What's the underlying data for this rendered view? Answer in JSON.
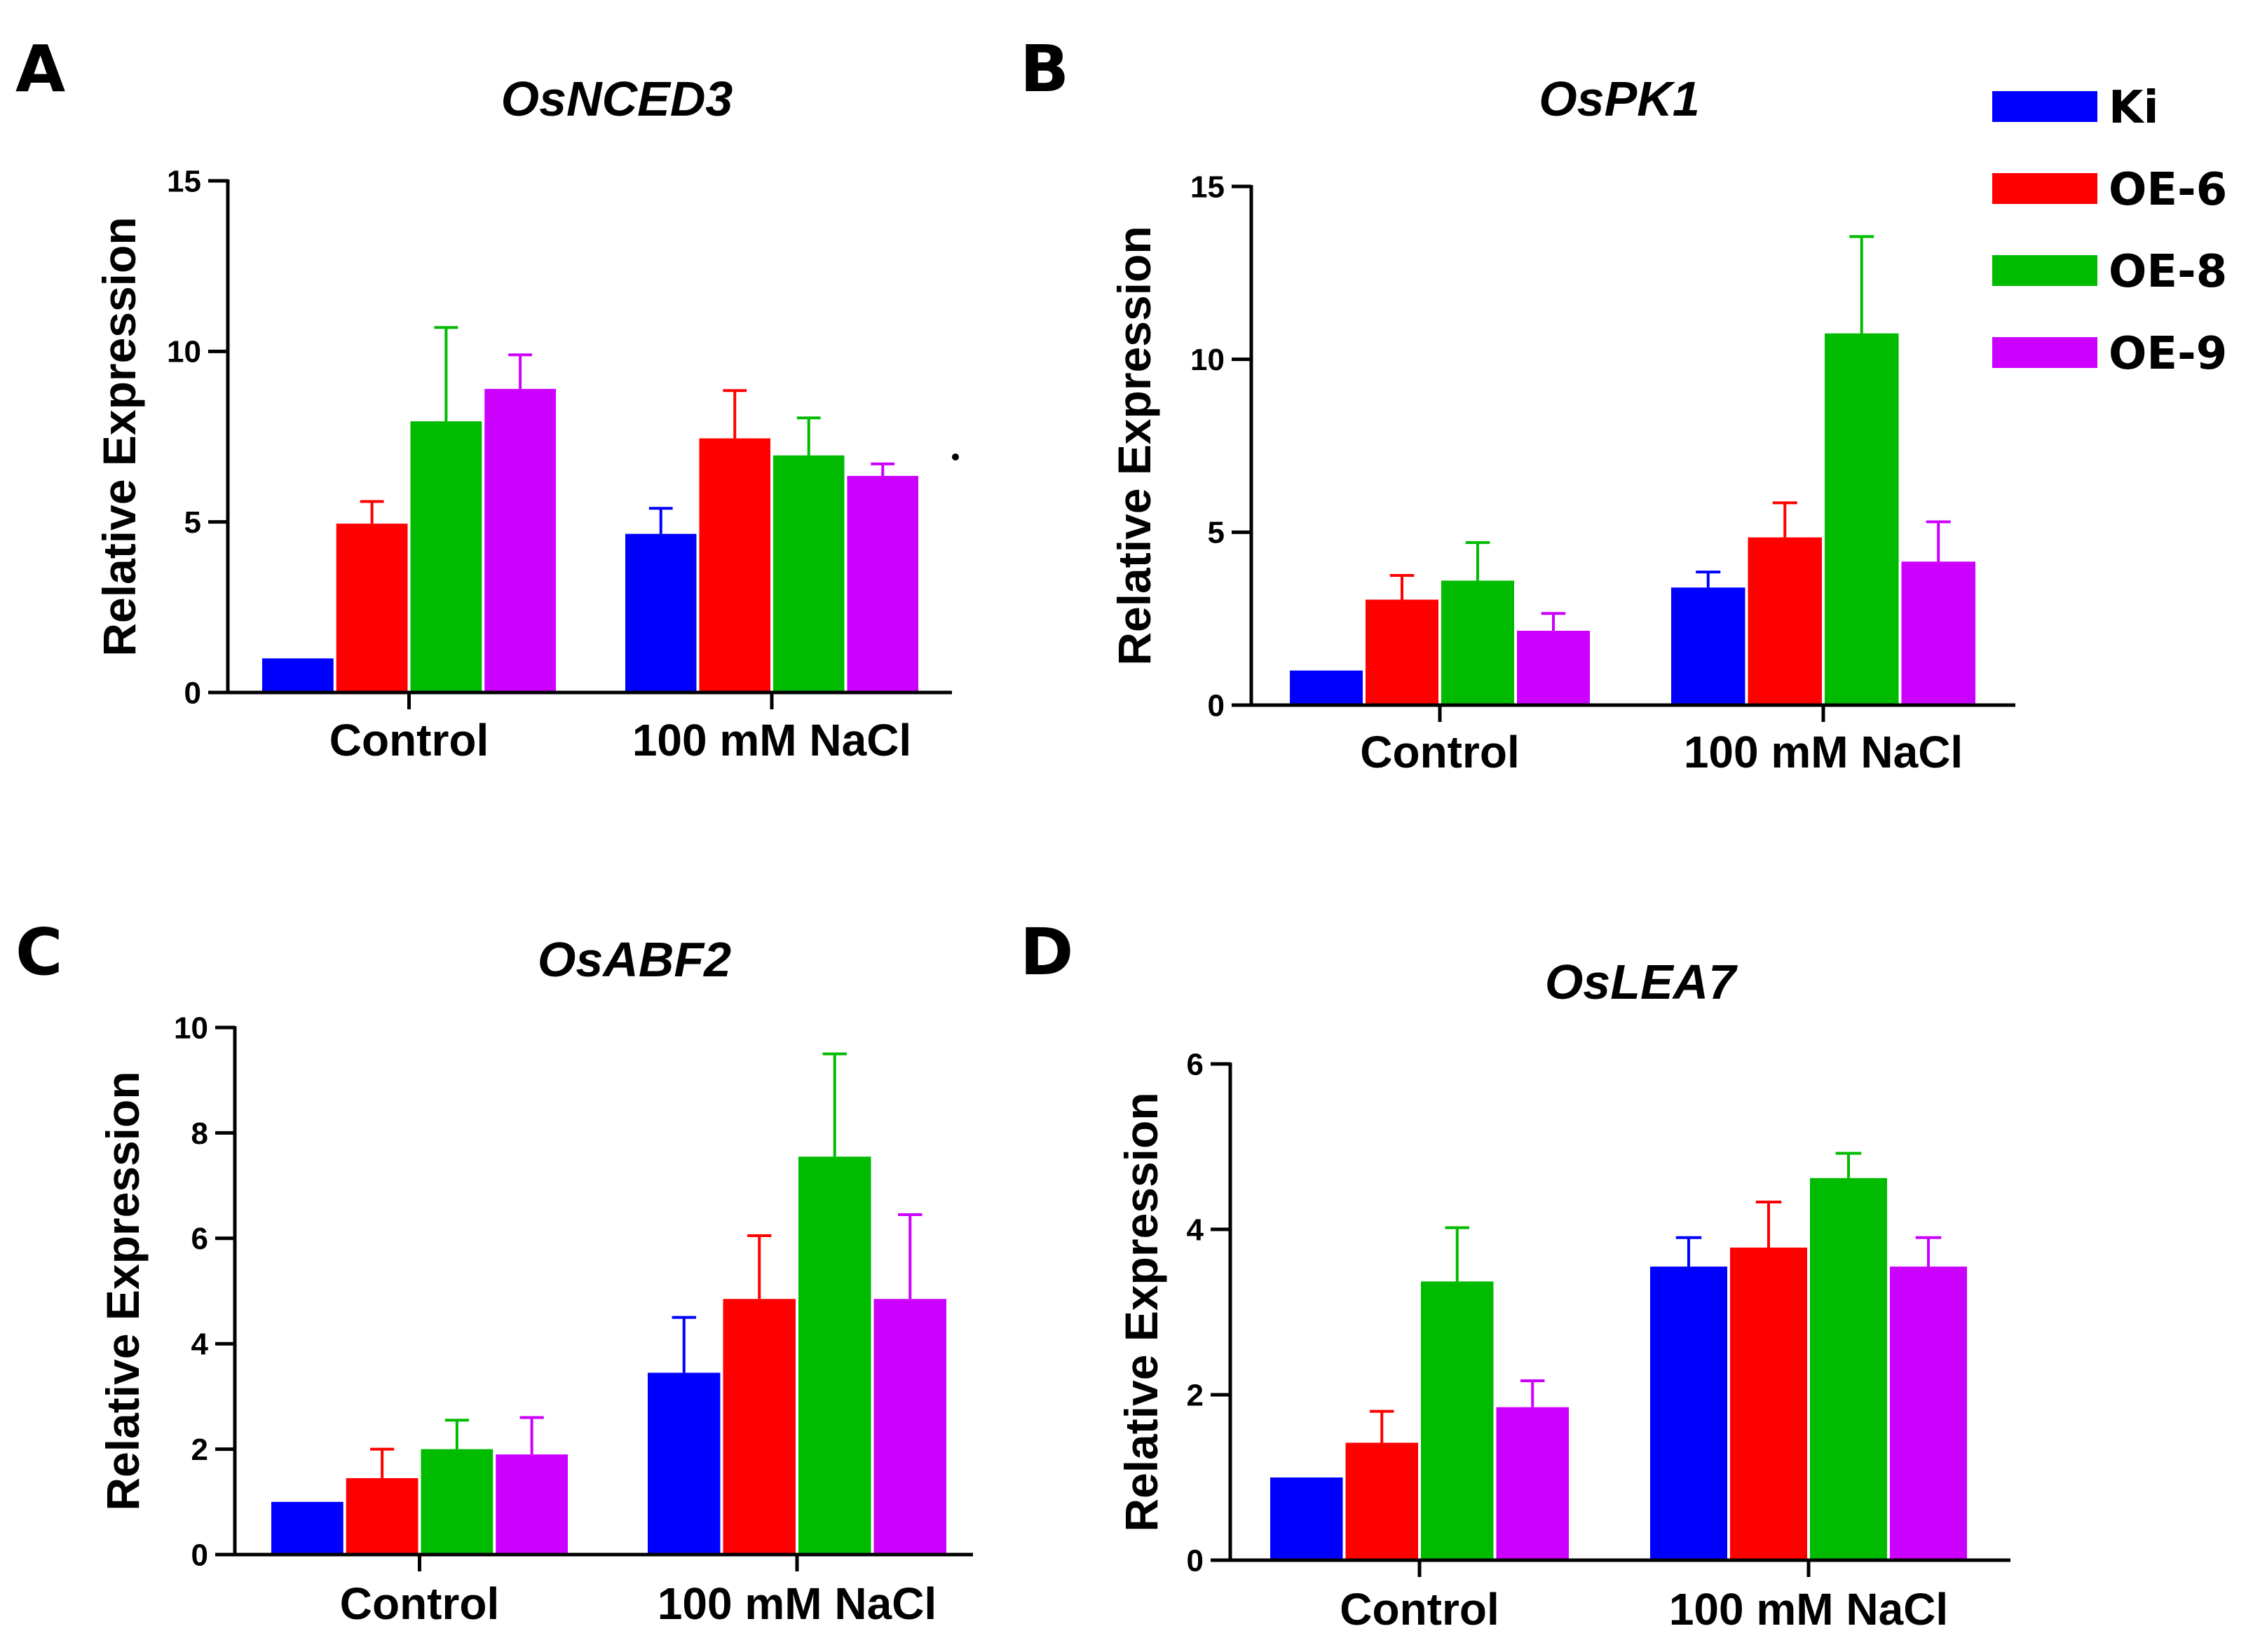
{
  "legend": [
    {
      "name": "Ki",
      "color": "#0000FF"
    },
    {
      "name": "OE-6",
      "color": "#FF0000"
    },
    {
      "name": "OE-8",
      "color": "#00BB00"
    },
    {
      "name": "OE-9",
      "color": "#CC00FF"
    }
  ],
  "chart_data": [
    {
      "panel": "A",
      "type": "bar",
      "title": "OsNCED3",
      "ylabel": "Relative Expression",
      "categories": [
        "Control",
        "100 mM NaCl"
      ],
      "ylim": [
        0,
        15
      ],
      "yticks": [
        0,
        5,
        10,
        15
      ],
      "series": [
        {
          "name": "Ki",
          "values": [
            1.0,
            4.65
          ],
          "errors": [
            0,
            0.75
          ]
        },
        {
          "name": "OE-6",
          "values": [
            4.95,
            7.45
          ],
          "errors": [
            0.65,
            1.4
          ]
        },
        {
          "name": "OE-8",
          "values": [
            7.95,
            6.95
          ],
          "errors": [
            2.75,
            1.1
          ]
        },
        {
          "name": "OE-9",
          "values": [
            8.9,
            6.35
          ],
          "errors": [
            1.0,
            0.35
          ]
        }
      ]
    },
    {
      "panel": "B",
      "type": "bar",
      "title": "OsPK1",
      "ylabel": "Relative Expression",
      "categories": [
        "Control",
        "100 mM NaCl"
      ],
      "ylim": [
        0,
        15
      ],
      "yticks": [
        0,
        5,
        10,
        15
      ],
      "series": [
        {
          "name": "Ki",
          "values": [
            1.0,
            3.4
          ],
          "errors": [
            0,
            0.45
          ]
        },
        {
          "name": "OE-6",
          "values": [
            3.05,
            4.85
          ],
          "errors": [
            0.7,
            1.0
          ]
        },
        {
          "name": "OE-8",
          "values": [
            3.6,
            10.75
          ],
          "errors": [
            1.1,
            2.8
          ]
        },
        {
          "name": "OE-9",
          "values": [
            2.15,
            4.15
          ],
          "errors": [
            0.5,
            1.15
          ]
        }
      ]
    },
    {
      "panel": "C",
      "type": "bar",
      "title": "OsABF2",
      "ylabel": "Relative Expression",
      "categories": [
        "Control",
        "100 mM NaCl"
      ],
      "ylim": [
        0,
        10
      ],
      "yticks": [
        0,
        2,
        4,
        6,
        8,
        10
      ],
      "series": [
        {
          "name": "Ki",
          "values": [
            1.0,
            3.45
          ],
          "errors": [
            0,
            1.05
          ]
        },
        {
          "name": "OE-6",
          "values": [
            1.45,
            4.85
          ],
          "errors": [
            0.55,
            1.2
          ]
        },
        {
          "name": "OE-8",
          "values": [
            2.0,
            7.55
          ],
          "errors": [
            0.55,
            1.95
          ]
        },
        {
          "name": "OE-9",
          "values": [
            1.9,
            4.85
          ],
          "errors": [
            0.7,
            1.6
          ]
        }
      ]
    },
    {
      "panel": "D",
      "type": "bar",
      "title": "OsLEA7",
      "ylabel": "Relative Expression",
      "categories": [
        "Control",
        "100 mM NaCl"
      ],
      "ylim": [
        0,
        6
      ],
      "yticks": [
        0,
        2,
        4,
        6
      ],
      "series": [
        {
          "name": "Ki",
          "values": [
            1.0,
            3.55
          ],
          "errors": [
            0,
            0.35
          ]
        },
        {
          "name": "OE-6",
          "values": [
            1.42,
            3.78
          ],
          "errors": [
            0.38,
            0.55
          ]
        },
        {
          "name": "OE-8",
          "values": [
            3.37,
            4.62
          ],
          "errors": [
            0.65,
            0.3
          ]
        },
        {
          "name": "OE-9",
          "values": [
            1.85,
            3.55
          ],
          "errors": [
            0.32,
            0.35
          ]
        }
      ]
    }
  ]
}
